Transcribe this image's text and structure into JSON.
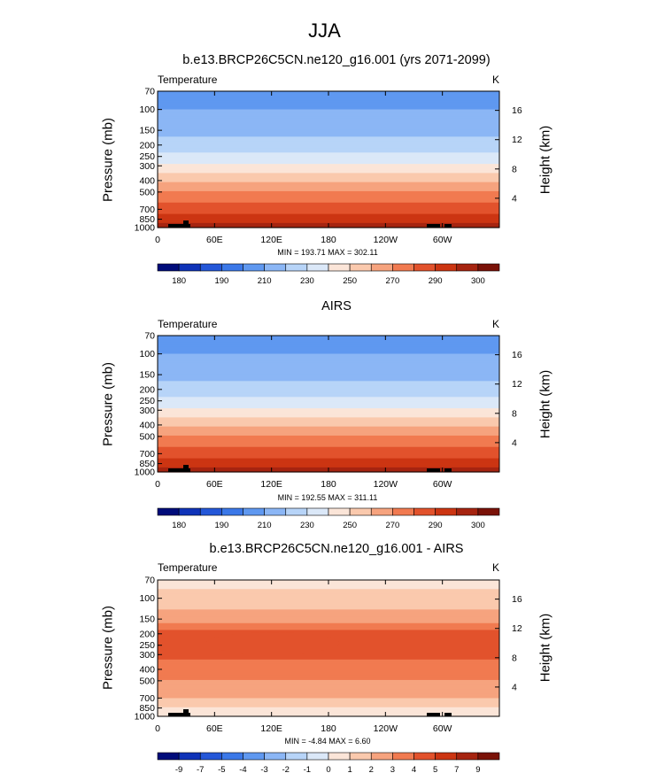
{
  "title": "JJA",
  "panels": [
    {
      "subtitle": "b.e13.BRCP26C5CN.ne120_g16.001 (yrs 2071-2099)",
      "left_label": "Temperature",
      "right_label": "K",
      "minmax": "MIN = 193.71  MAX = 302.11"
    },
    {
      "subtitle": "AIRS",
      "left_label": "Temperature",
      "right_label": "K",
      "minmax": "MIN = 192.55  MAX = 311.11"
    },
    {
      "subtitle": "b.e13.BRCP26C5CN.ne120_g16.001 - AIRS",
      "left_label": "Temperature",
      "right_label": "K",
      "minmax": "MIN =  -4.84  MAX =   6.60"
    }
  ],
  "axes": {
    "ylabel": "Pressure (mb)",
    "y2label": "Height (km)",
    "pressure_ticks": [
      "70",
      "100",
      "150",
      "200",
      "250",
      "300",
      "400",
      "500",
      "700",
      "850",
      "1000"
    ],
    "pressure_values": [
      70,
      100,
      150,
      200,
      250,
      300,
      400,
      500,
      700,
      850,
      1000
    ],
    "height_ticks": [
      "16",
      "12",
      "8",
      "4"
    ],
    "height_values": [
      16,
      12,
      8,
      4
    ],
    "lon_ticks": [
      "0",
      "60E",
      "120E",
      "180",
      "120W",
      "60W"
    ]
  },
  "colorbar_abs": {
    "labels": [
      "180",
      "190",
      "210",
      "230",
      "250",
      "270",
      "290",
      "300"
    ],
    "colors": [
      "#000c7a",
      "#0f33b8",
      "#2457d8",
      "#3b78e8",
      "#5f98f0",
      "#8bb6f5",
      "#b7d4f8",
      "#dbe8f8",
      "#fbe5d8",
      "#fac9ad",
      "#f6a37e",
      "#f17a50",
      "#e2522c",
      "#cc3512",
      "#a62410",
      "#7a1208"
    ]
  },
  "colorbar_diff": {
    "labels": [
      "-9",
      "-7",
      "-5",
      "-4",
      "-3",
      "-2",
      "-1",
      "0",
      "1",
      "2",
      "3",
      "4",
      "5",
      "7",
      "9"
    ],
    "colors": [
      "#000c7a",
      "#0f33b8",
      "#2457d8",
      "#3b78e8",
      "#5f98f0",
      "#8bb6f5",
      "#b7d4f8",
      "#dbe8f8",
      "#fbe5d8",
      "#fac9ad",
      "#f6a37e",
      "#f17a50",
      "#e2522c",
      "#cc3512",
      "#a62410",
      "#7a1208"
    ]
  },
  "chart_data": [
    {
      "type": "heatmap",
      "title": "b.e13.BRCP26C5CN.ne120_g16.001 (yrs 2071-2099)",
      "variable": "Temperature",
      "units": "K",
      "xlabel": "",
      "ylabel": "Pressure (mb)",
      "y2label": "Height (km)",
      "x_ticks": [
        "0",
        "60E",
        "120E",
        "180",
        "120W",
        "60W"
      ],
      "y_ticks": [
        70,
        100,
        150,
        200,
        250,
        300,
        400,
        500,
        700,
        850,
        1000
      ],
      "levels": [
        180,
        190,
        210,
        230,
        250,
        270,
        290,
        300
      ],
      "min": 193.71,
      "max": 302.11,
      "profile_pressure": [
        70,
        100,
        150,
        200,
        250,
        300,
        400,
        500,
        700,
        850,
        1000
      ],
      "profile_temp_K": [
        198,
        200,
        207,
        214,
        223,
        232,
        248,
        260,
        276,
        287,
        295
      ]
    },
    {
      "type": "heatmap",
      "title": "AIRS",
      "variable": "Temperature",
      "units": "K",
      "ylabel": "Pressure (mb)",
      "y2label": "Height (km)",
      "x_ticks": [
        "0",
        "60E",
        "120E",
        "180",
        "120W",
        "60W"
      ],
      "y_ticks": [
        70,
        100,
        150,
        200,
        250,
        300,
        400,
        500,
        700,
        850,
        1000
      ],
      "levels": [
        180,
        190,
        210,
        230,
        250,
        270,
        290,
        300
      ],
      "min": 192.55,
      "max": 311.11,
      "profile_pressure": [
        70,
        100,
        150,
        200,
        250,
        300,
        400,
        500,
        700,
        850,
        1000
      ],
      "profile_temp_K": [
        198,
        200,
        207,
        214,
        223,
        232,
        248,
        260,
        276,
        287,
        295
      ]
    },
    {
      "type": "heatmap",
      "title": "b.e13.BRCP26C5CN.ne120_g16.001 - AIRS",
      "variable": "Temperature",
      "units": "K",
      "ylabel": "Pressure (mb)",
      "y2label": "Height (km)",
      "x_ticks": [
        "0",
        "60E",
        "120E",
        "180",
        "120W",
        "60W"
      ],
      "y_ticks": [
        70,
        100,
        150,
        200,
        250,
        300,
        400,
        500,
        700,
        850,
        1000
      ],
      "levels": [
        -9,
        -7,
        -5,
        -4,
        -3,
        -2,
        -1,
        0,
        1,
        2,
        3,
        4,
        5,
        7,
        9
      ],
      "min": -4.84,
      "max": 6.6,
      "profile_pressure": [
        70,
        100,
        150,
        200,
        250,
        300,
        400,
        500,
        700,
        850,
        1000
      ],
      "profile_diff_K": [
        0.5,
        1.5,
        2.5,
        4.5,
        4.5,
        4.2,
        3.5,
        3.0,
        2.0,
        1.0,
        0.5
      ]
    }
  ]
}
